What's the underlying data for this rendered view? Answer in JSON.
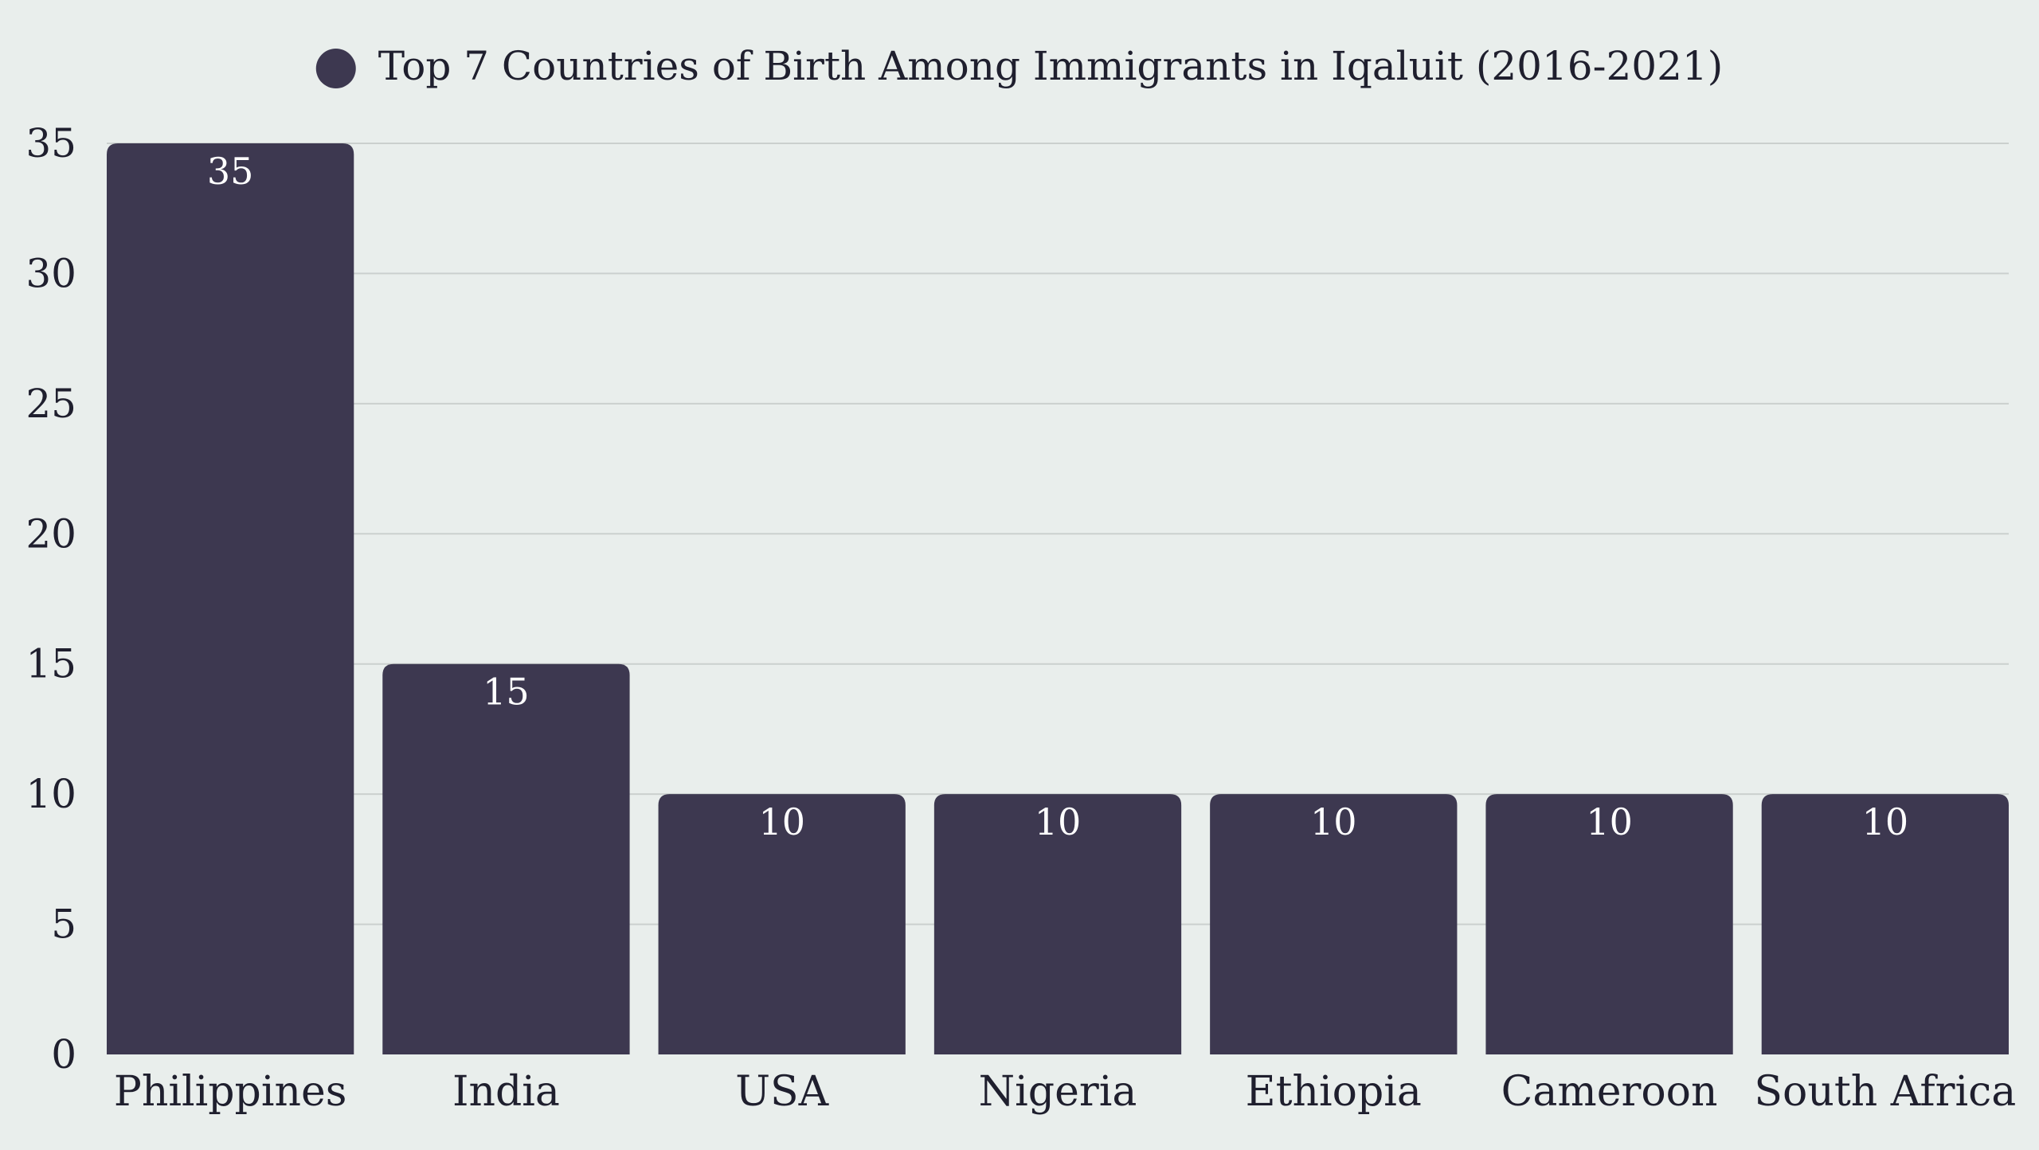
{
  "colors": {
    "background": "#E9EEEC",
    "bar": "#3D3850",
    "grid": "#CBD0CE",
    "text": "#1f1f2e",
    "data_label": "#FFFFFF"
  },
  "chart_data": {
    "type": "bar",
    "title": "",
    "xlabel": "",
    "ylabel": "",
    "legend_position": "top-center",
    "grid": true,
    "categories": [
      "Philippines",
      "India",
      "USA",
      "Nigeria",
      "Ethiopia",
      "Cameroon",
      "South Africa"
    ],
    "series": [
      {
        "name": "Top 7 Countries of Birth Among Immigrants in Iqaluit (2016-2021)",
        "values": [
          35,
          15,
          10,
          10,
          10,
          10,
          10
        ]
      }
    ],
    "ylim": [
      0,
      35
    ],
    "yticks": [
      0,
      5,
      10,
      15,
      20,
      25,
      30,
      35
    ]
  }
}
